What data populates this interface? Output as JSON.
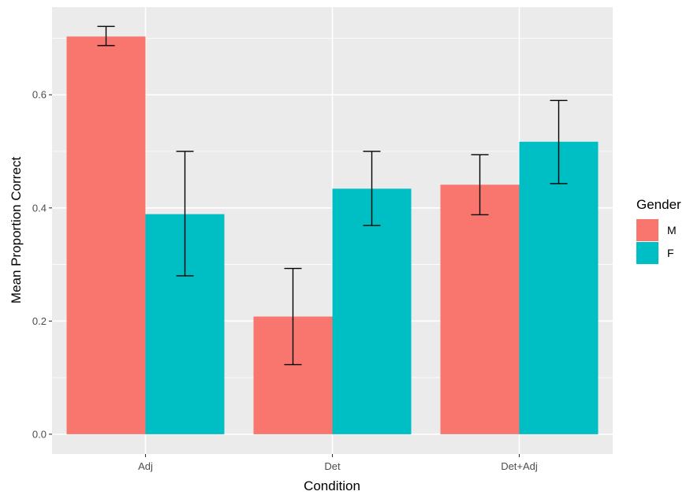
{
  "chart_data": {
    "type": "bar",
    "title": "",
    "xlabel": "Condition",
    "ylabel": "Mean Proportion Correct",
    "categories": [
      "Adj",
      "Det",
      "Det+Adj"
    ],
    "series": [
      {
        "name": "M",
        "color": "#f8766d",
        "values": [
          0.703,
          0.208,
          0.441
        ],
        "err_low": [
          0.687,
          0.123,
          0.388
        ],
        "err_high": [
          0.721,
          0.293,
          0.494
        ]
      },
      {
        "name": "F",
        "color": "#00bfc4",
        "values": [
          0.389,
          0.434,
          0.517
        ],
        "err_low": [
          0.28,
          0.369,
          0.443
        ],
        "err_high": [
          0.5,
          0.5,
          0.59
        ]
      }
    ],
    "ylim": [
      -0.035,
      0.755
    ],
    "yticks": [
      0.0,
      0.2,
      0.4,
      0.6
    ],
    "ytick_labels": [
      "0.0",
      "0.2",
      "0.4",
      "0.6"
    ],
    "grid": true,
    "legend": {
      "title": "Gender",
      "placement": "right"
    },
    "panel_color": "#ebebeb"
  }
}
